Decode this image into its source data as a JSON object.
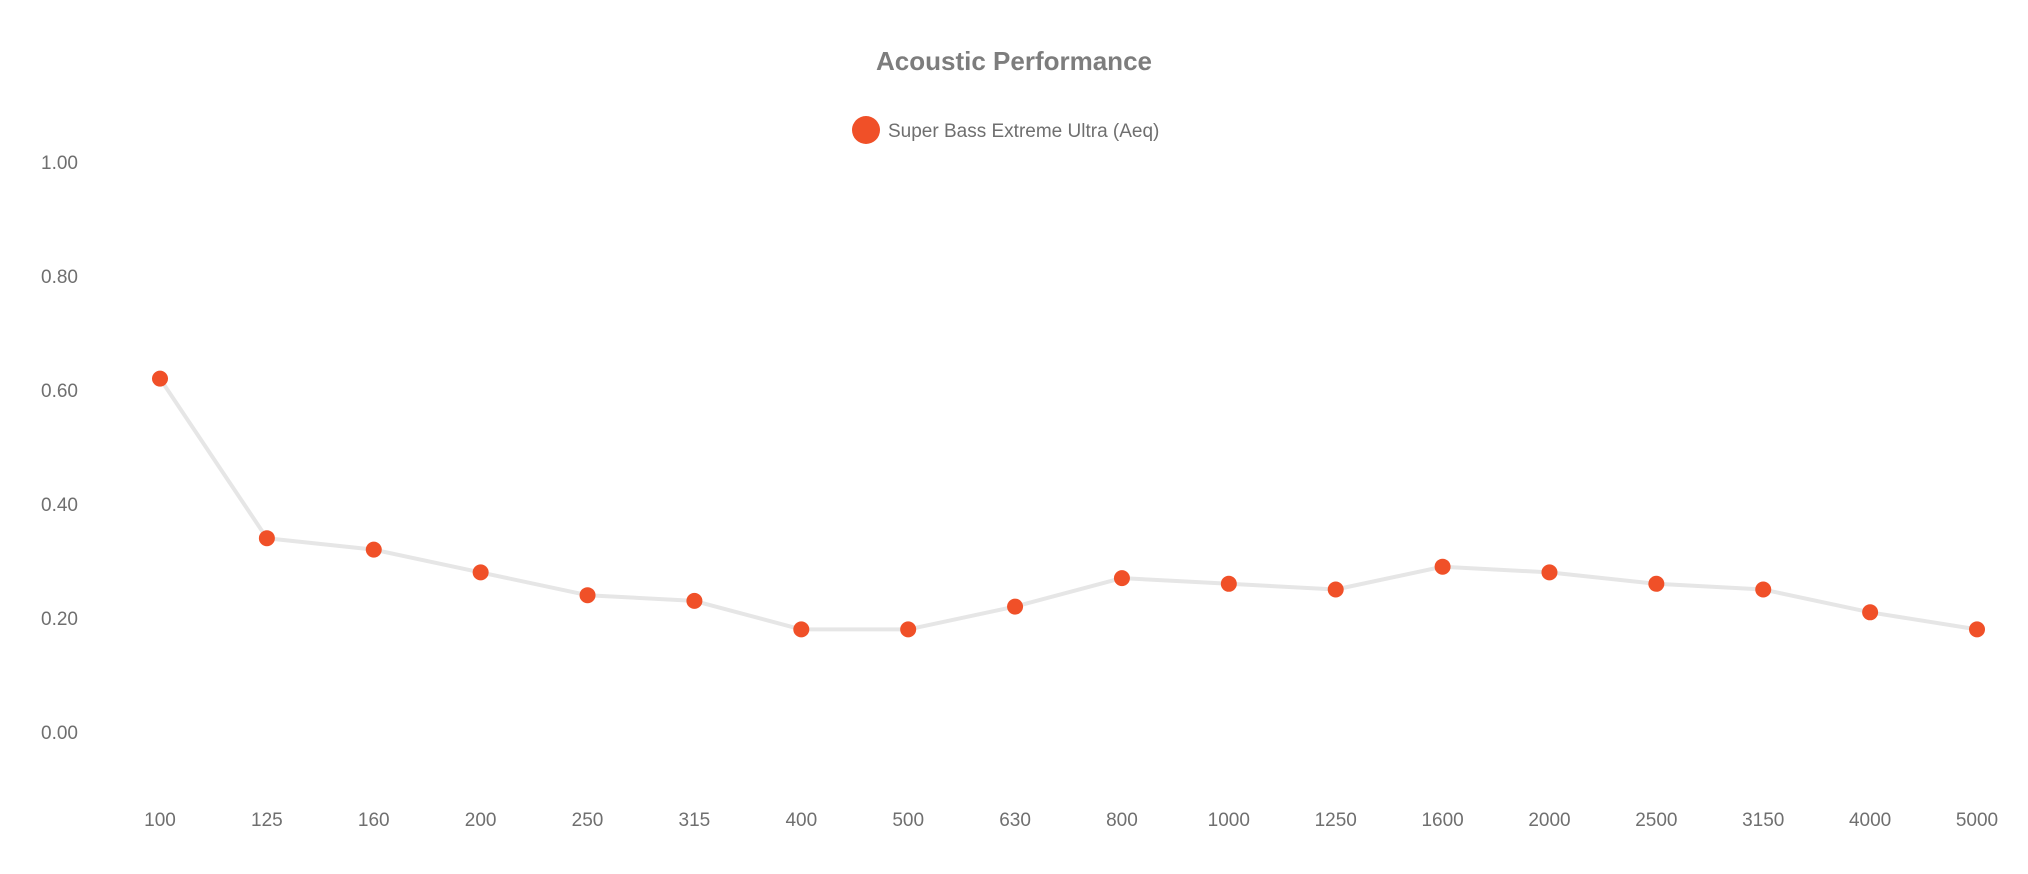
{
  "chart_data": {
    "type": "line",
    "title": "Acoustic Performance",
    "xlabel": "",
    "ylabel": "",
    "categories": [
      "100",
      "125",
      "160",
      "200",
      "250",
      "315",
      "400",
      "500",
      "630",
      "800",
      "1000",
      "1250",
      "1600",
      "2000",
      "2500",
      "3150",
      "4000",
      "5000"
    ],
    "series": [
      {
        "name": "Super Bass Extreme Ultra (Aeq)",
        "values": [
          0.62,
          0.34,
          0.32,
          0.28,
          0.24,
          0.23,
          0.18,
          0.18,
          0.22,
          0.27,
          0.26,
          0.25,
          0.29,
          0.28,
          0.26,
          0.25,
          0.21,
          0.18
        ],
        "marker_color": "#f05028",
        "line_color": "#e6e6e6"
      }
    ],
    "ylim": [
      0,
      1
    ],
    "y_ticks": [
      "0.00",
      "0.20",
      "0.40",
      "0.60",
      "0.80",
      "1.00"
    ],
    "grid": false,
    "legend_position": "top-center"
  }
}
